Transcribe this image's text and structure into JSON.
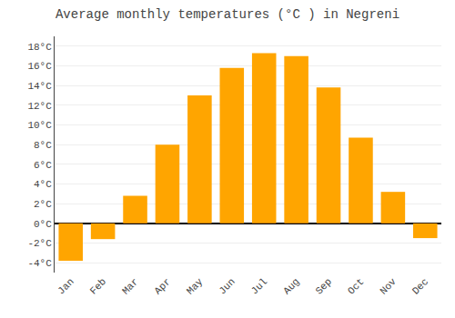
{
  "chart_data": {
    "type": "bar",
    "title": "Average monthly temperatures (°C ) in Negreni",
    "categories": [
      "Jan",
      "Feb",
      "Mar",
      "Apr",
      "May",
      "Jun",
      "Jul",
      "Aug",
      "Sep",
      "Oct",
      "Nov",
      "Dec"
    ],
    "values": [
      -3.8,
      -1.6,
      2.8,
      8.0,
      13.0,
      15.8,
      17.3,
      17.0,
      13.8,
      8.7,
      3.2,
      -1.5
    ],
    "color": "#FFA500",
    "ylim": [
      -5,
      19
    ],
    "yticks": [
      {
        "value": -4,
        "label": "-4°C"
      },
      {
        "value": -2,
        "label": "-2°C"
      },
      {
        "value": 0,
        "label": "0°C"
      },
      {
        "value": 2,
        "label": "2°C"
      },
      {
        "value": 4,
        "label": "4°C"
      },
      {
        "value": 6,
        "label": "6°C"
      },
      {
        "value": 8,
        "label": "8°C"
      },
      {
        "value": 10,
        "label": "10°C"
      },
      {
        "value": 12,
        "label": "12°C"
      },
      {
        "value": 14,
        "label": "14°C"
      },
      {
        "value": 16,
        "label": "16°C"
      },
      {
        "value": 18,
        "label": "18°C"
      }
    ],
    "grid": true
  }
}
